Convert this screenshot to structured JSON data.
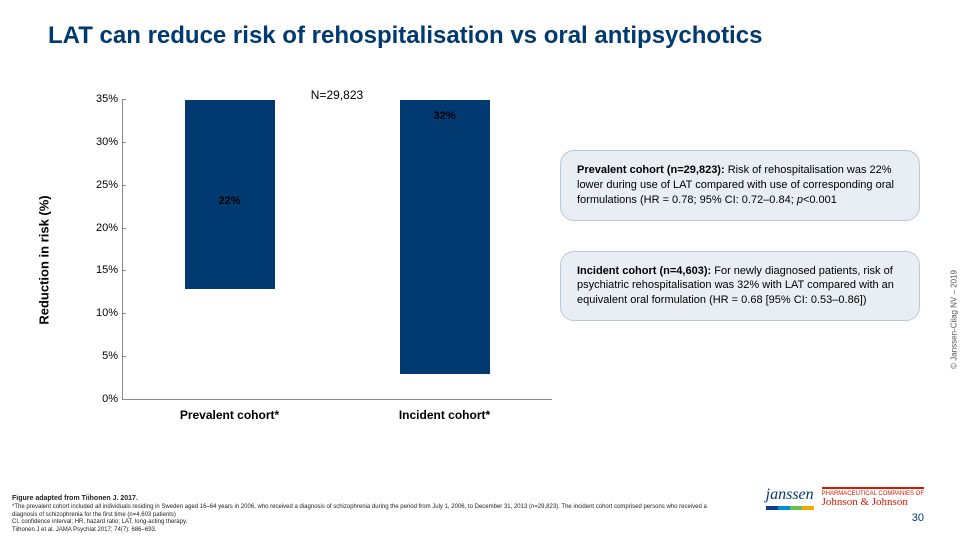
{
  "title_text": "LAT can reduce risk of rehospitalisation vs oral antipsychotics",
  "title_color": "#003a70",
  "chart": {
    "type": "bar",
    "n_label": "N=29,823",
    "ylabel": "Reduction in risk (%)",
    "ylim_max": 35,
    "ylim_min": 0,
    "ytick_step": 5,
    "yticks": [
      "0%",
      "5%",
      "10%",
      "15%",
      "20%",
      "25%",
      "30%",
      "35%"
    ],
    "categories": [
      "Prevalent cohort*",
      "Incident cohort*"
    ],
    "values": [
      22,
      32
    ],
    "value_labels": [
      "22%",
      "32%"
    ],
    "bar_colors": [
      "#003a70",
      "#003a70"
    ],
    "axis_color": "#888888",
    "label_fontsize_pt": 13,
    "tick_fontsize_pt": 11,
    "value_fontsize_pt": 11,
    "category_fontsize_pt": 12
  },
  "callouts": [
    {
      "bg": "#e8eef4",
      "border": "#b7c8da",
      "bold_prefix": "Prevalent cohort (n=29,823):",
      "text_rest": " Risk of rehospitalisation was 22% lower during use of LAT compared with use of corresponding oral formulations (HR = 0.78; 95% CI: 0.72–0.84; ",
      "italic_tail": "p",
      "tail2": "<0.001"
    },
    {
      "bg": "#e8eef4",
      "border": "#b7c8da",
      "bold_prefix": "Incident cohort (n=4,603):",
      "text_rest": " For newly diagnosed patients, risk of psychiatric rehospitalisation was 32% with LAT compared with an equivalent oral formulation (HR = 0.68 [95% CI: 0.53–0.86])",
      "italic_tail": "",
      "tail2": ""
    }
  ],
  "footer": {
    "fig_line": "Figure adapted from Tiihonen J. 2017.",
    "note_line": "*The prevalent cohort included all individuals residing in Sweden aged 16–64 years in 2006, who received a diagnosis of schizophrenia during the period from July 1, 2006, to December 31, 2013 (n=29,823). The incident cohort comprised persons who received a diagnosis of schizophrenia for the first time (n=4,603 patients)",
    "abbr_line": "CI, confidence interval; HR, hazard ratio; LAT, long-acting therapy.",
    "ref_line": "Tiihonen J et al. JAMA Psychiat 2017; 74(7): 686–693."
  },
  "page_number": "30",
  "logo": {
    "janssen_text": "janssen",
    "bar_colors": [
      "#0b3e91",
      "#0090d4",
      "#6abf4b",
      "#f2a900"
    ],
    "jnj_top": "PHARMACEUTICAL COMPANIES OF",
    "jnj_name": "Johnson & Johnson"
  },
  "copyright_text": "© Janssen-Cilag NV – 2019"
}
